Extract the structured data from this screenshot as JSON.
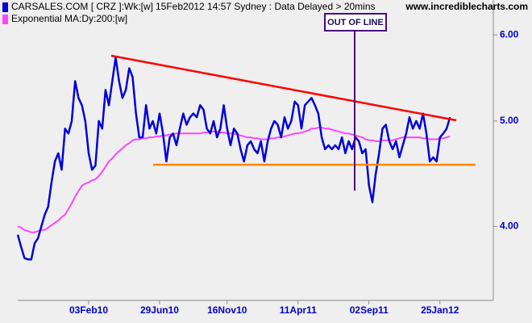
{
  "chart_data": {
    "type": "line",
    "title": "15Feb2012 14:57 Sydney : Data Delayed > 20mins",
    "source": "www.incrediblecharts.com",
    "annotation": "OUT OF LINE",
    "log_scale": true,
    "ylim": [
      3.42,
      6.46
    ],
    "yticks": [
      {
        "value": 4,
        "label": "4.00"
      },
      {
        "value": 5,
        "label": "5.00"
      },
      {
        "value": 6,
        "label": "6.00"
      }
    ],
    "categories": [
      null,
      null,
      null,
      null,
      null,
      null,
      null,
      null,
      null,
      null,
      null,
      null,
      null,
      null,
      null,
      null,
      null,
      null,
      null,
      null,
      null,
      "03Feb10",
      null,
      null,
      null,
      null,
      null,
      null,
      null,
      null,
      null,
      null,
      null,
      null,
      null,
      null,
      null,
      null,
      null,
      null,
      null,
      null,
      "29Jun10",
      null,
      null,
      null,
      null,
      null,
      null,
      null,
      null,
      null,
      null,
      null,
      null,
      null,
      null,
      null,
      null,
      null,
      null,
      null,
      "16Nov10",
      null,
      null,
      null,
      null,
      null,
      null,
      null,
      null,
      null,
      null,
      null,
      null,
      null,
      null,
      null,
      null,
      null,
      null,
      null,
      null,
      "11Apr11",
      null,
      null,
      null,
      null,
      null,
      null,
      null,
      null,
      null,
      null,
      null,
      null,
      null,
      null,
      null,
      null,
      null,
      null,
      null,
      null,
      "02Sep11",
      null,
      null,
      null,
      null,
      null,
      null,
      null,
      null,
      null,
      null,
      null,
      null,
      null,
      null,
      null,
      null,
      null,
      null,
      null,
      null,
      "25Jan12",
      null,
      null,
      null
    ],
    "series": [
      {
        "name": "CARSALES.COM [ CRZ ]:Wk:[w]",
        "color": "#0000dd",
        "values": [
          3.93,
          3.83,
          3.74,
          3.73,
          3.73,
          3.86,
          3.9,
          4.0,
          4.1,
          4.17,
          4.39,
          4.59,
          4.67,
          4.51,
          4.92,
          4.87,
          5.0,
          5.44,
          5.25,
          5.17,
          5.0,
          4.67,
          4.51,
          4.55,
          5.0,
          4.92,
          5.34,
          5.17,
          5.44,
          5.72,
          5.44,
          5.25,
          5.34,
          5.59,
          5.49,
          5.08,
          4.83,
          4.83,
          5.17,
          4.92,
          5.0,
          4.87,
          5.08,
          4.87,
          4.59,
          4.83,
          4.87,
          4.75,
          4.92,
          5.08,
          4.96,
          5.04,
          5.08,
          5.04,
          5.17,
          5.12,
          4.92,
          4.87,
          5.0,
          4.83,
          4.92,
          5.17,
          4.92,
          4.75,
          4.92,
          4.87,
          4.71,
          4.59,
          4.75,
          4.79,
          4.71,
          4.67,
          4.79,
          4.59,
          4.79,
          4.92,
          5.0,
          4.96,
          4.83,
          5.04,
          4.92,
          5.0,
          5.21,
          5.17,
          4.92,
          5.17,
          5.21,
          5.25,
          5.17,
          5.08,
          4.83,
          4.71,
          4.75,
          4.71,
          4.75,
          4.71,
          4.83,
          4.67,
          4.79,
          4.71,
          4.83,
          4.79,
          4.67,
          4.71,
          4.36,
          4.21,
          4.47,
          4.67,
          4.92,
          4.96,
          4.79,
          4.71,
          4.79,
          4.63,
          4.75,
          4.87,
          5.04,
          4.92,
          5.0,
          4.92,
          5.08,
          4.87,
          4.59,
          4.63,
          4.59,
          4.83,
          4.87,
          4.92,
          5.04
        ]
      },
      {
        "name": "Exponential MA:Dy:200:[w]",
        "color": "#ff44ff",
        "values": [
          4.0,
          3.99,
          3.97,
          3.96,
          3.95,
          3.95,
          3.96,
          3.97,
          3.97,
          3.99,
          4.01,
          4.03,
          4.05,
          4.08,
          4.1,
          4.15,
          4.2,
          4.26,
          4.31,
          4.36,
          4.38,
          4.39,
          4.41,
          4.42,
          4.45,
          4.49,
          4.54,
          4.59,
          4.62,
          4.66,
          4.69,
          4.72,
          4.75,
          4.77,
          4.8,
          4.81,
          4.81,
          4.82,
          4.82,
          4.83,
          4.83,
          4.84,
          4.84,
          4.85,
          4.85,
          4.86,
          4.86,
          4.87,
          4.87,
          4.87,
          4.87,
          4.87,
          4.87,
          4.87,
          4.87,
          4.88,
          4.88,
          4.89,
          4.89,
          4.89,
          4.88,
          4.88,
          4.87,
          4.87,
          4.87,
          4.86,
          4.85,
          4.84,
          4.83,
          4.83,
          4.82,
          4.82,
          4.81,
          4.81,
          4.81,
          4.82,
          4.82,
          4.83,
          4.83,
          4.84,
          4.85,
          4.86,
          4.87,
          4.87,
          4.88,
          4.89,
          4.9,
          4.92,
          4.92,
          4.93,
          4.93,
          4.92,
          4.92,
          4.91,
          4.9,
          4.89,
          4.88,
          4.87,
          4.87,
          4.86,
          4.85,
          4.84,
          4.83,
          4.81,
          4.8,
          4.8,
          4.79,
          4.79,
          4.8,
          4.8,
          4.8,
          4.8,
          4.81,
          4.82,
          4.83,
          4.83,
          4.83,
          4.83,
          4.83,
          4.83,
          4.82,
          4.82,
          4.81,
          4.81,
          4.81,
          4.82,
          4.82,
          4.83,
          4.84
        ]
      }
    ]
  }
}
